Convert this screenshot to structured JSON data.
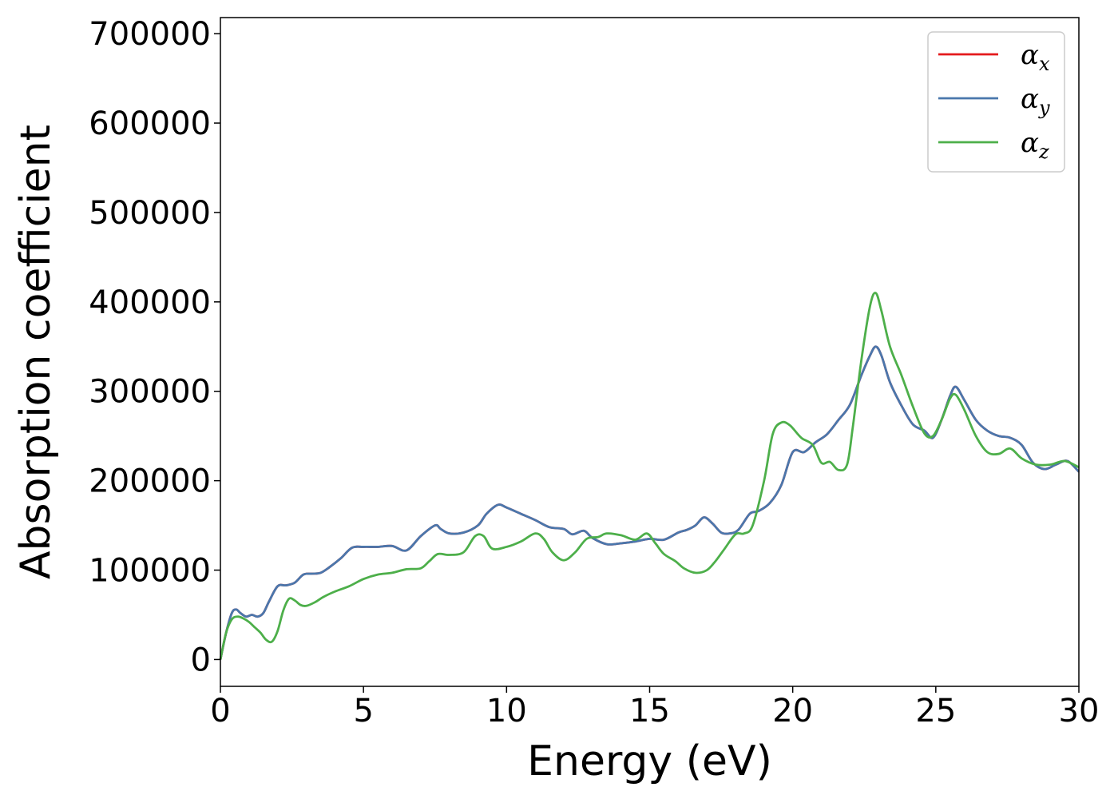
{
  "chart_data": {
    "type": "line",
    "xlabel": "Energy (eV)",
    "ylabel": "Absorption coefficient",
    "xlim": [
      0,
      30
    ],
    "ylim": [
      -30000,
      718000
    ],
    "xticks": [
      0,
      5,
      10,
      15,
      20,
      25,
      30
    ],
    "yticks": [
      0,
      100000,
      200000,
      300000,
      400000,
      500000,
      600000,
      700000
    ],
    "grid": false,
    "legend_position": "top-right",
    "series": [
      {
        "name": "α_x",
        "label_base": "α",
        "label_sub": "x",
        "color": "#e41a1c",
        "x": [
          0,
          0.2,
          0.4,
          0.55,
          0.7,
          0.9,
          1.1,
          1.3,
          1.5,
          1.7,
          2.0,
          2.3,
          2.6,
          2.9,
          3.2,
          3.5,
          3.8,
          4.2,
          4.6,
          5.0,
          5.5,
          6.0,
          6.5,
          7.0,
          7.5,
          7.7,
          8.0,
          8.5,
          9.0,
          9.3,
          9.7,
          10.0,
          10.5,
          11.0,
          11.5,
          12.0,
          12.3,
          12.7,
          13.0,
          13.5,
          14.0,
          14.5,
          15.0,
          15.5,
          16.0,
          16.3,
          16.6,
          16.9,
          17.2,
          17.5,
          17.8,
          18.1,
          18.5,
          18.8,
          19.2,
          19.6,
          20.0,
          20.4,
          20.8,
          21.2,
          21.6,
          22.0,
          22.4,
          22.7,
          22.9,
          23.1,
          23.4,
          23.8,
          24.2,
          24.6,
          24.9,
          25.2,
          25.5,
          25.7,
          26.0,
          26.4,
          26.8,
          27.2,
          27.6,
          28.0,
          28.4,
          28.8,
          29.2,
          29.6,
          30.0
        ],
        "y": [
          0,
          30000,
          52000,
          56000,
          52000,
          48000,
          50000,
          48000,
          52000,
          65000,
          82000,
          83000,
          86000,
          95000,
          96000,
          97000,
          103000,
          113000,
          125000,
          126000,
          126000,
          127000,
          122000,
          138000,
          150000,
          146000,
          141000,
          142000,
          150000,
          163000,
          173000,
          170000,
          163000,
          156000,
          148000,
          146000,
          140000,
          144000,
          136000,
          129000,
          130000,
          132000,
          135000,
          134000,
          142000,
          145000,
          150000,
          159000,
          152000,
          142000,
          141000,
          145000,
          163000,
          166000,
          175000,
          195000,
          232000,
          232000,
          243000,
          252000,
          268000,
          285000,
          318000,
          340000,
          350000,
          340000,
          310000,
          284000,
          263000,
          256000,
          248000,
          268000,
          295000,
          305000,
          290000,
          268000,
          256000,
          250000,
          248000,
          240000,
          220000,
          213000,
          218000,
          222000,
          210000
        ]
      },
      {
        "name": "α_y",
        "label_base": "α",
        "label_sub": "y",
        "color": "#4a77ac",
        "x": [
          0,
          0.2,
          0.4,
          0.55,
          0.7,
          0.9,
          1.1,
          1.3,
          1.5,
          1.7,
          2.0,
          2.3,
          2.6,
          2.9,
          3.2,
          3.5,
          3.8,
          4.2,
          4.6,
          5.0,
          5.5,
          6.0,
          6.5,
          7.0,
          7.5,
          7.7,
          8.0,
          8.5,
          9.0,
          9.3,
          9.7,
          10.0,
          10.5,
          11.0,
          11.5,
          12.0,
          12.3,
          12.7,
          13.0,
          13.5,
          14.0,
          14.5,
          15.0,
          15.5,
          16.0,
          16.3,
          16.6,
          16.9,
          17.2,
          17.5,
          17.8,
          18.1,
          18.5,
          18.8,
          19.2,
          19.6,
          20.0,
          20.4,
          20.8,
          21.2,
          21.6,
          22.0,
          22.4,
          22.7,
          22.9,
          23.1,
          23.4,
          23.8,
          24.2,
          24.6,
          24.9,
          25.2,
          25.5,
          25.7,
          26.0,
          26.4,
          26.8,
          27.2,
          27.6,
          28.0,
          28.4,
          28.8,
          29.2,
          29.6,
          30.0
        ],
        "y": [
          0,
          30000,
          52000,
          56000,
          52000,
          48000,
          50000,
          48000,
          52000,
          65000,
          82000,
          83000,
          86000,
          95000,
          96000,
          97000,
          103000,
          113000,
          125000,
          126000,
          126000,
          127000,
          122000,
          138000,
          150000,
          146000,
          141000,
          142000,
          150000,
          163000,
          173000,
          170000,
          163000,
          156000,
          148000,
          146000,
          140000,
          144000,
          136000,
          129000,
          130000,
          132000,
          135000,
          134000,
          142000,
          145000,
          150000,
          159000,
          152000,
          142000,
          141000,
          145000,
          163000,
          166000,
          175000,
          195000,
          232000,
          232000,
          243000,
          252000,
          268000,
          285000,
          318000,
          340000,
          350000,
          340000,
          310000,
          284000,
          263000,
          256000,
          248000,
          268000,
          295000,
          305000,
          290000,
          268000,
          256000,
          250000,
          248000,
          240000,
          220000,
          213000,
          218000,
          222000,
          210000
        ]
      },
      {
        "name": "α_z",
        "label_base": "α",
        "label_sub": "z",
        "color": "#4daf4a",
        "x": [
          0,
          0.2,
          0.4,
          0.6,
          0.8,
          1.0,
          1.2,
          1.4,
          1.6,
          1.8,
          2.0,
          2.2,
          2.4,
          2.6,
          2.8,
          3.0,
          3.3,
          3.6,
          4.0,
          4.5,
          5.0,
          5.5,
          6.0,
          6.5,
          7.0,
          7.3,
          7.6,
          8.0,
          8.5,
          8.9,
          9.2,
          9.5,
          10.0,
          10.5,
          11.0,
          11.3,
          11.6,
          12.0,
          12.4,
          12.8,
          13.2,
          13.5,
          14.0,
          14.5,
          14.9,
          15.2,
          15.5,
          15.9,
          16.2,
          16.6,
          17.0,
          17.3,
          17.6,
          18.0,
          18.3,
          18.6,
          19.0,
          19.3,
          19.6,
          19.9,
          20.3,
          20.7,
          21.0,
          21.3,
          21.6,
          21.9,
          22.1,
          22.4,
          22.7,
          22.9,
          23.1,
          23.4,
          23.8,
          24.2,
          24.6,
          24.9,
          25.2,
          25.5,
          25.7,
          26.0,
          26.4,
          26.8,
          27.2,
          27.6,
          28.0,
          28.5,
          29.0,
          29.5,
          30.0
        ],
        "y": [
          0,
          30000,
          45000,
          48000,
          46000,
          42000,
          36000,
          30000,
          22000,
          20000,
          32000,
          55000,
          68000,
          66000,
          61000,
          60000,
          64000,
          70000,
          76000,
          82000,
          90000,
          95000,
          97000,
          101000,
          102000,
          110000,
          118000,
          117000,
          120000,
          138000,
          138000,
          124000,
          126000,
          132000,
          141000,
          135000,
          120000,
          111000,
          120000,
          135000,
          137000,
          141000,
          139000,
          134000,
          141000,
          130000,
          118000,
          110000,
          102000,
          97000,
          100000,
          110000,
          123000,
          140000,
          141000,
          150000,
          200000,
          252000,
          265000,
          262000,
          248000,
          240000,
          220000,
          221000,
          212000,
          218000,
          260000,
          335000,
          395000,
          410000,
          390000,
          350000,
          318000,
          283000,
          253000,
          250000,
          268000,
          292000,
          296000,
          279000,
          250000,
          232000,
          230000,
          236000,
          225000,
          218000,
          218000,
          222000,
          215000
        ]
      }
    ]
  }
}
